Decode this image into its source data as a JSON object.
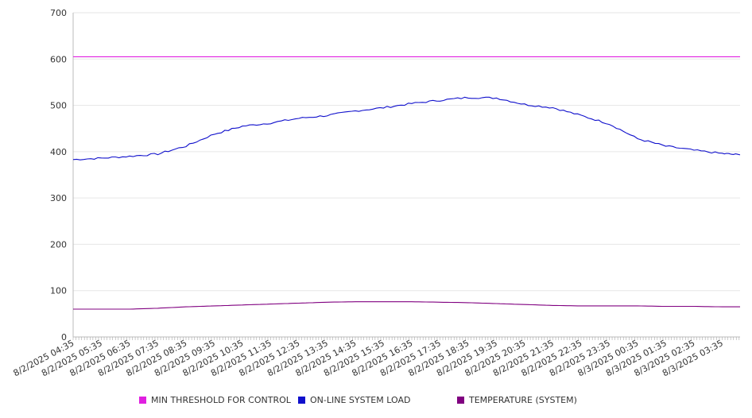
{
  "chart_data": {
    "type": "line",
    "ylim": [
      0,
      700
    ],
    "yticks": [
      0,
      100,
      200,
      300,
      400,
      500,
      600,
      700
    ],
    "xticks": [
      "8/2/2025 04:35",
      "8/2/2025 05:35",
      "8/2/2025 06:35",
      "8/2/2025 07:35",
      "8/2/2025 08:35",
      "8/2/2025 09:35",
      "8/2/2025 10:35",
      "8/2/2025 11:35",
      "8/2/2025 12:35",
      "8/2/2025 13:35",
      "8/2/2025 14:35",
      "8/2/2025 15:35",
      "8/2/2025 16:35",
      "8/2/2025 17:35",
      "8/2/2025 18:35",
      "8/2/2025 19:35",
      "8/2/2025 20:35",
      "8/2/2025 21:35",
      "8/2/2025 22:35",
      "8/2/2025 23:35",
      "8/3/2025 00:35",
      "8/3/2025 01:35",
      "8/3/2025 02:35",
      "8/3/2025 03:35"
    ],
    "x": [
      "8/2/2025 04:35",
      "8/2/2025 05:35",
      "8/2/2025 06:35",
      "8/2/2025 07:35",
      "8/2/2025 08:35",
      "8/2/2025 09:35",
      "8/2/2025 10:35",
      "8/2/2025 11:35",
      "8/2/2025 12:35",
      "8/2/2025 13:35",
      "8/2/2025 14:35",
      "8/2/2025 15:35",
      "8/2/2025 16:35",
      "8/2/2025 17:35",
      "8/2/2025 18:35",
      "8/2/2025 19:35",
      "8/2/2025 20:35",
      "8/2/2025 21:35",
      "8/2/2025 22:35",
      "8/2/2025 23:35",
      "8/3/2025 00:35",
      "8/3/2025 01:35",
      "8/3/2025 02:35",
      "8/3/2025 03:35",
      "8/3/2025 04:30"
    ],
    "grid": true,
    "legend_position": "bottom",
    "series": [
      {
        "name": "MIN THRESHOLD FOR CONTROL",
        "color": "#e020e0",
        "values": [
          605,
          605,
          605,
          605,
          605,
          605,
          605,
          605,
          605,
          605,
          605,
          605,
          605,
          605,
          605,
          605,
          605,
          605,
          605,
          605,
          605,
          605,
          605,
          605,
          605
        ]
      },
      {
        "name": "ON-LINE SYSTEM LOAD",
        "color": "#1010cc",
        "values": [
          383,
          386,
          390,
          395,
          412,
          438,
          455,
          462,
          472,
          478,
          488,
          495,
          504,
          511,
          517,
          516,
          502,
          495,
          478,
          460,
          428,
          412,
          403,
          396,
          393
        ]
      },
      {
        "name": "TEMPERATURE (SYSTEM)",
        "color": "#800080",
        "values": [
          60,
          60,
          60,
          62,
          65,
          67,
          69,
          71,
          73,
          75,
          76,
          76,
          76,
          75,
          74,
          72,
          70,
          68,
          67,
          67,
          67,
          66,
          66,
          65,
          65
        ]
      }
    ]
  }
}
